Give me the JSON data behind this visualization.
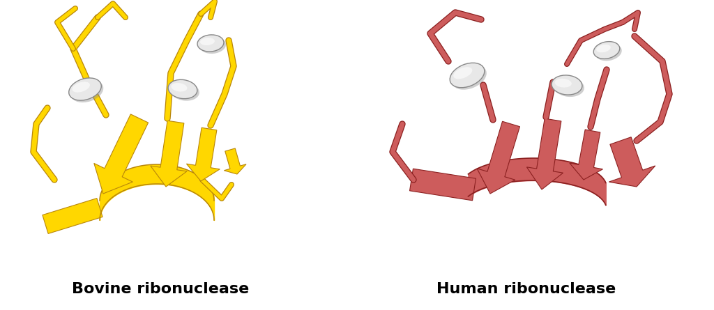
{
  "title_left": "Bovine ribonuclease",
  "title_right": "Human ribonuclease",
  "title_fontsize": 16,
  "title_fontweight": "bold",
  "title_color": "#000000",
  "bg_color": "#ffffff",
  "left_color_main": "#FFD700",
  "left_color_dark": "#B8860B",
  "right_color_main": "#CD5C5C",
  "right_color_dark": "#8B2020",
  "helix_color": "#E8E8E8",
  "fig_width": 10.24,
  "fig_height": 4.45,
  "dpi": 100
}
